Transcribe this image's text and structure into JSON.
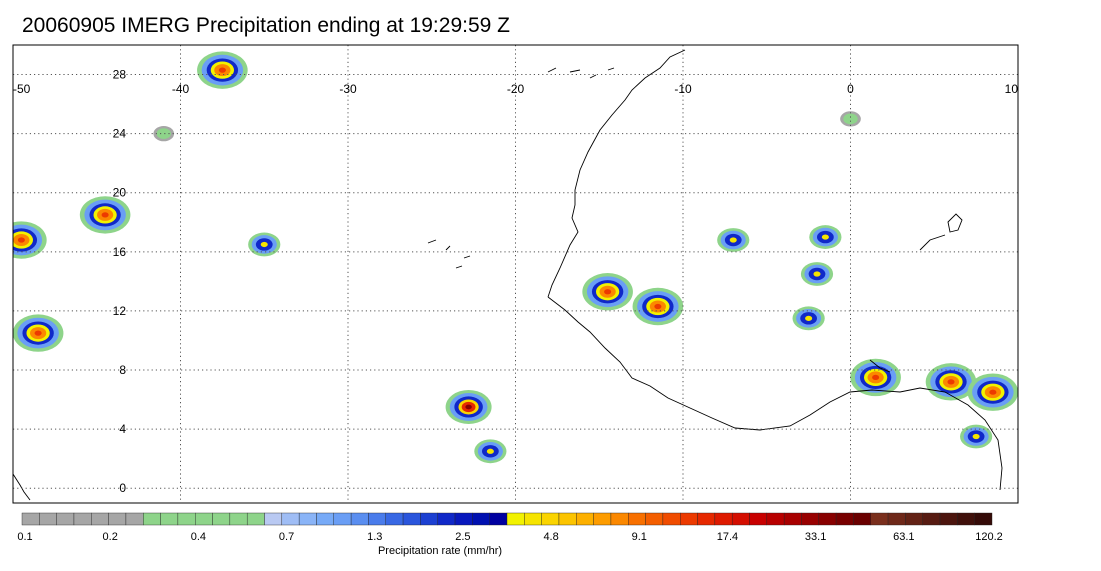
{
  "title": "20060905 IMERG Precipitation ending at 19:29:59 Z",
  "map": {
    "lon_range": [
      -50,
      10
    ],
    "lat_range": [
      -1,
      30
    ],
    "lon_ticks": [
      "-50",
      "-40",
      "-30",
      "-20",
      "-10",
      "0",
      "10"
    ],
    "lat_ticks": [
      "28",
      "24",
      "20",
      "16",
      "12",
      "8",
      "4",
      "0"
    ],
    "grid": "dotted"
  },
  "colorbar": {
    "title": "Precipitation rate (mm/hr)",
    "labels": [
      "0.1",
      "0.2",
      "0.4",
      "0.7",
      "1.3",
      "2.5",
      "4.8",
      "9.1",
      "17.4",
      "33.1",
      "63.1",
      "120.2"
    ],
    "colors": [
      "#a6a6a6",
      "#a6a6a6",
      "#a6a6a6",
      "#a6a6a6",
      "#a6a6a6",
      "#a6a6a6",
      "#a6a6a6",
      "#8ed48a",
      "#8ed48a",
      "#8ed48a",
      "#8ed48a",
      "#8ed48a",
      "#8ed48a",
      "#8ed48a",
      "#b9c9f2",
      "#9fbdf5",
      "#8ab4f7",
      "#77aaf7",
      "#6a9ef5",
      "#5a8ef0",
      "#4a7ceb",
      "#3868e4",
      "#2a55dc",
      "#1c40d2",
      "#1028c8",
      "#0818bd",
      "#0010b0",
      "#0000a0",
      "#f2f200",
      "#f6e400",
      "#fad400",
      "#fcc400",
      "#fdb000",
      "#fd9c00",
      "#fb8800",
      "#f87000",
      "#f45e00",
      "#f04c00",
      "#ec3a00",
      "#e62800",
      "#de1a00",
      "#d40e00",
      "#c80000",
      "#b80000",
      "#a80000",
      "#980000",
      "#880000",
      "#780000",
      "#6a0000",
      "#7a2f1d",
      "#6e2819",
      "#632215",
      "#571b12",
      "#4c150e",
      "#40100b",
      "#350b08"
    ]
  },
  "precipitation_cells": [
    {
      "lon": -44.5,
      "lat": 18.5,
      "level": "heavy"
    },
    {
      "lon": -49.5,
      "lat": 16.8,
      "level": "heavy"
    },
    {
      "lon": -48.5,
      "lat": 10.5,
      "level": "heavy"
    },
    {
      "lon": -35.0,
      "lat": 16.5,
      "level": "moderate"
    },
    {
      "lon": -37.5,
      "lat": 28.3,
      "level": "heavy"
    },
    {
      "lon": -22.8,
      "lat": 5.5,
      "level": "extreme"
    },
    {
      "lon": -21.5,
      "lat": 2.5,
      "level": "moderate"
    },
    {
      "lon": -14.5,
      "lat": 13.3,
      "level": "heavy"
    },
    {
      "lon": -11.5,
      "lat": 12.3,
      "level": "heavy"
    },
    {
      "lon": -7.0,
      "lat": 16.8,
      "level": "moderate"
    },
    {
      "lon": -1.5,
      "lat": 17.0,
      "level": "moderate"
    },
    {
      "lon": -2.0,
      "lat": 14.5,
      "level": "moderate"
    },
    {
      "lon": -2.5,
      "lat": 11.5,
      "level": "moderate"
    },
    {
      "lon": 1.5,
      "lat": 7.5,
      "level": "heavy"
    },
    {
      "lon": 6.0,
      "lat": 7.2,
      "level": "heavy"
    },
    {
      "lon": 8.5,
      "lat": 6.5,
      "level": "heavy"
    },
    {
      "lon": 7.5,
      "lat": 3.5,
      "level": "moderate"
    },
    {
      "lon": 0.0,
      "lat": 25.0,
      "level": "light"
    },
    {
      "lon": -41.0,
      "lat": 24.0,
      "level": "light"
    }
  ]
}
